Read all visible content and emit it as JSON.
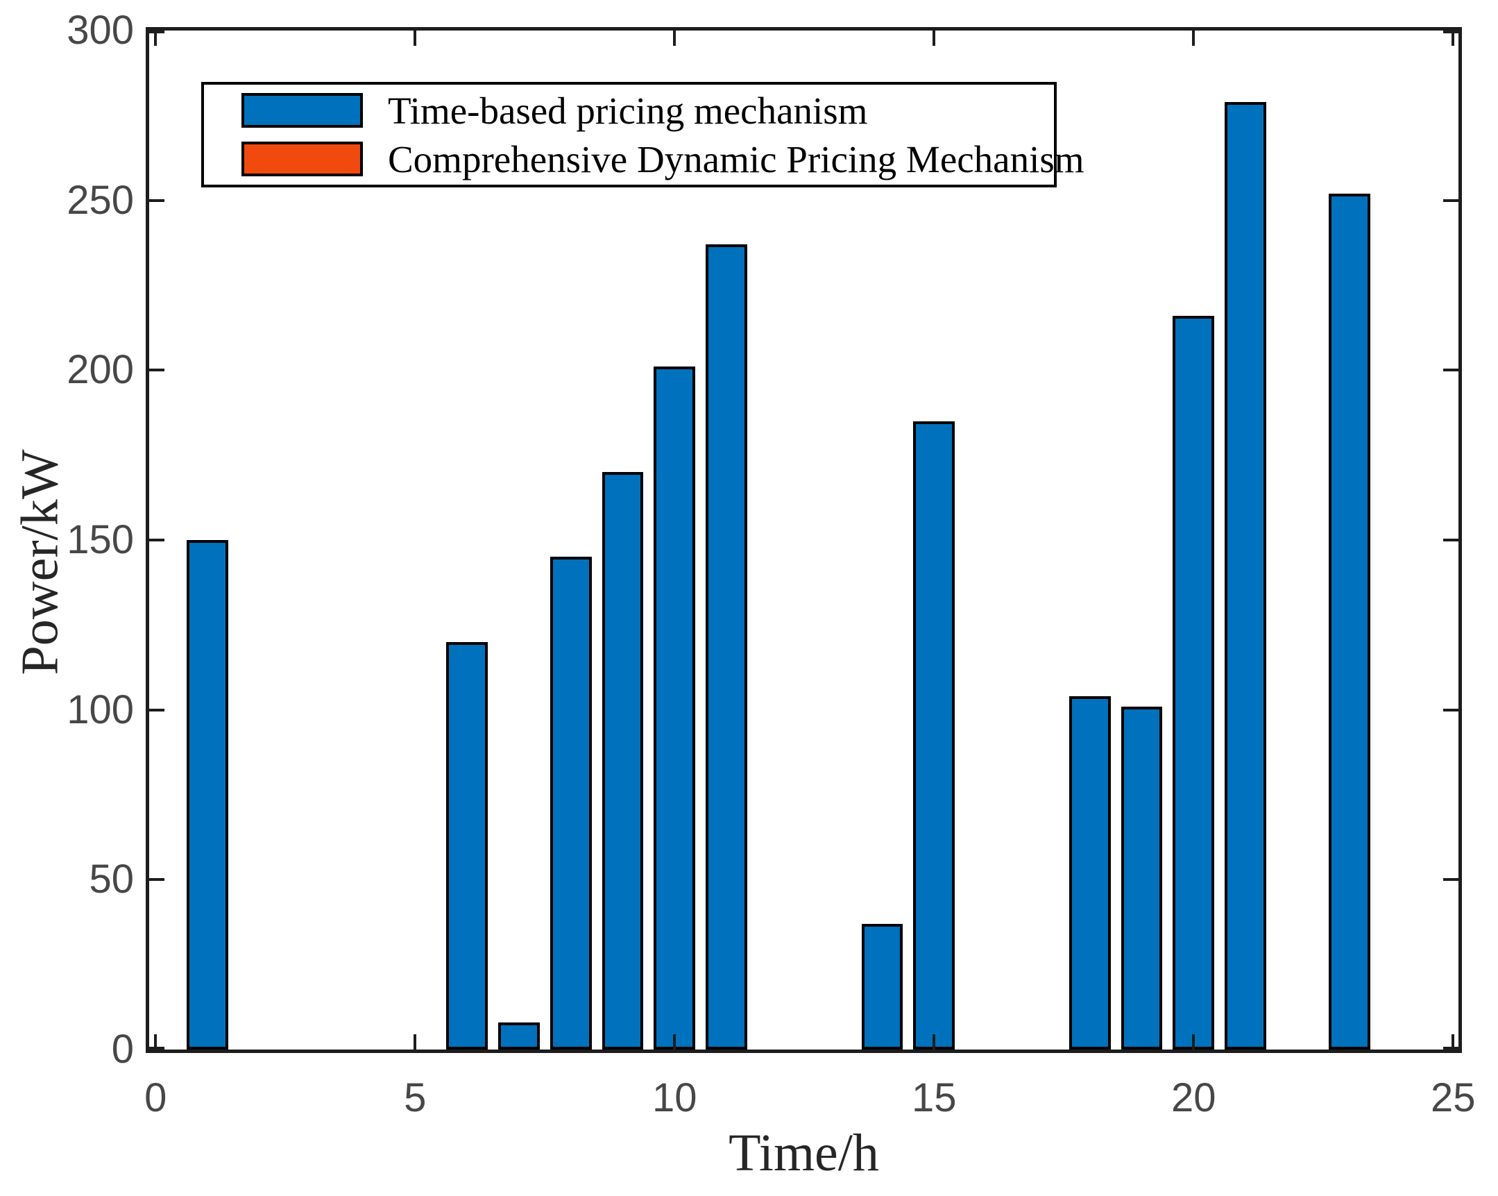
{
  "chart_data": {
    "type": "bar",
    "title": "",
    "xlabel": "Time/h",
    "ylabel": "Power/kW",
    "xlim": [
      -0.2,
      25.2
    ],
    "ylim": [
      0,
      300
    ],
    "x_ticks": [
      0,
      5,
      10,
      15,
      20,
      25
    ],
    "y_ticks": [
      0,
      50,
      100,
      150,
      200,
      250,
      300
    ],
    "bar_width_hours": 0.8,
    "grid": false,
    "box": true,
    "tick_direction": "in",
    "legend_position": "upper-left",
    "series": [
      {
        "name": "Time-based pricing mechanism",
        "color": "#0072BD",
        "x": [
          1,
          6,
          7,
          8,
          9,
          10,
          11,
          14,
          15,
          18,
          19,
          20,
          21,
          23
        ],
        "values": [
          150,
          120,
          8,
          145,
          170,
          201,
          237,
          37,
          185,
          104,
          101,
          216,
          279,
          252
        ]
      },
      {
        "name": "Comprehensive Dynamic Pricing Mechanism",
        "color": "#F04A0E",
        "x": [],
        "values": []
      }
    ]
  },
  "style": {
    "axis_color": "#1d1d1d",
    "tick_label_color": "#474747",
    "bar_edge_color": "#000000",
    "background": "#ffffff"
  }
}
